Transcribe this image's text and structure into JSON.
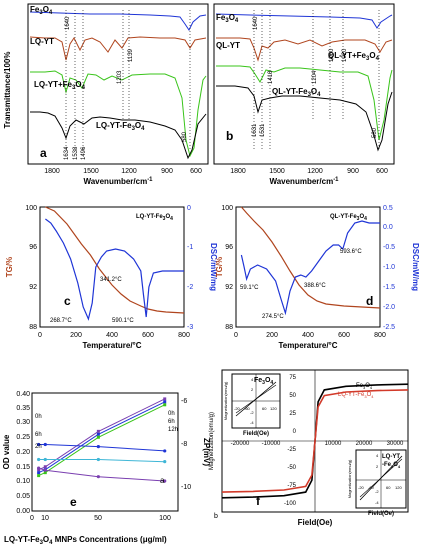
{
  "colors": {
    "black": "#000000",
    "blue": "#1f35d6",
    "green": "#39c41a",
    "brown": "#b0451e",
    "red": "#d23a2a",
    "purple": "#7a3fb0",
    "cyan": "#3fb6d6",
    "gray": "#555555"
  },
  "chart_data": [
    {
      "panel": "a",
      "type": "line",
      "xlabel": "Wavenumber/cm",
      "xlabel_sup": "-1",
      "ylabel": "Transmittance/100%",
      "xticks": [
        "1800",
        "1500",
        "1200",
        "900",
        "600"
      ],
      "xlim": [
        1900,
        480
      ],
      "series": [
        {
          "name": "Fe3O4"
        },
        {
          "name": "LQ-YT"
        },
        {
          "name": "LQ-YT+Fe3O4"
        },
        {
          "name": "LQ-YT-Fe3O4"
        }
      ],
      "annotations": [
        "1640",
        "1203",
        "1139",
        "1634",
        "1538",
        "1496",
        "580"
      ]
    },
    {
      "panel": "b",
      "type": "line",
      "xlabel": "Wavenumber/cm",
      "xlabel_sup": "-1",
      "xticks": [
        "1800",
        "1500",
        "1200",
        "900",
        "600"
      ],
      "xlim": [
        1900,
        480
      ],
      "series": [
        {
          "name": "Fe3O4"
        },
        {
          "name": "QL-YT"
        },
        {
          "name": "QL-YT+Fe3O4"
        },
        {
          "name": "QL-YT-Fe3O4"
        }
      ],
      "annotations": [
        "1640",
        "1418",
        "1204",
        "1060",
        "1020",
        "1631",
        "1531",
        "580"
      ]
    },
    {
      "panel": "c",
      "type": "line",
      "title": "LQ-YT-Fe3O4",
      "xlabel": "Temperature/°C",
      "ylabel_left": "TG/%",
      "ylabel_right": "DSC/mW/mg",
      "xlim": [
        0,
        800
      ],
      "ylim_left": [
        88,
        100
      ],
      "ylim_right": [
        -3,
        0
      ],
      "xticks": [
        "0",
        "200",
        "400",
        "600",
        "800"
      ],
      "yticks_left": [
        "88",
        "92",
        "96",
        "100"
      ],
      "yticks_right": [
        "-3",
        "-2",
        "-1",
        "0"
      ],
      "tg": {
        "x": [
          30,
          80,
          150,
          230,
          280,
          330,
          400,
          450,
          500,
          560,
          600,
          650,
          700,
          800
        ],
        "y": [
          100,
          99.6,
          98.3,
          96.3,
          95.2,
          93.8,
          92.2,
          91.3,
          90.6,
          90.1,
          89.8,
          89.6,
          89.5,
          89.4
        ]
      },
      "dsc": {
        "x": [
          30,
          60,
          90,
          130,
          170,
          210,
          240,
          268.7,
          290,
          310,
          341.2,
          370,
          420,
          470,
          520,
          560,
          575,
          590.1,
          605,
          630,
          680,
          750,
          800
        ],
        "y": [
          -0.3,
          -0.4,
          -0.6,
          -0.9,
          -1.3,
          -1.9,
          -2.5,
          -2.8,
          -2.4,
          -1.5,
          -1.25,
          -1.1,
          -1.05,
          -1.1,
          -1.3,
          -1.6,
          -2.2,
          -2.75,
          -2.0,
          -1.65,
          -1.6,
          -1.6,
          -1.6
        ]
      },
      "annotations": [
        "268.7°C",
        "341.2°C",
        "590.1°C"
      ]
    },
    {
      "panel": "d",
      "type": "line",
      "title": "QL-YT-Fe3O4",
      "xlabel": "Temperature/°C",
      "ylabel_left": "TG/%",
      "ylabel_right": "DSC/mW/mg",
      "xlim": [
        0,
        800
      ],
      "ylim_left": [
        88,
        100
      ],
      "ylim_right": [
        -2.5,
        0.5
      ],
      "xticks": [
        "0",
        "200",
        "400",
        "600",
        "800"
      ],
      "yticks_left": [
        "88",
        "92",
        "96",
        "100"
      ],
      "yticks_right": [
        "-2.5",
        "-2.0",
        "-1.5",
        "-1.0",
        "-0.5",
        "0.0",
        "0.5"
      ],
      "tg": {
        "x": [
          30,
          59.1,
          100,
          150,
          200,
          250,
          300,
          350,
          400,
          450,
          500,
          600,
          700,
          800
        ],
        "y": [
          100,
          99.4,
          98.6,
          97.7,
          96.5,
          95.1,
          93.6,
          92.2,
          91.2,
          90.6,
          90.3,
          90.1,
          90.0,
          89.9
        ]
      },
      "dsc": {
        "x": [
          30,
          45,
          59.1,
          80,
          120,
          170,
          220,
          250,
          274.5,
          300,
          330,
          360,
          388.6,
          420,
          460,
          500,
          540,
          570,
          593.6,
          620,
          660,
          700,
          740,
          800
        ],
        "y": [
          -0.7,
          -1.0,
          -1.3,
          -1.05,
          -0.95,
          -1.05,
          -1.35,
          -1.8,
          -2.15,
          -1.6,
          -1.25,
          -1.2,
          -1.25,
          -1.1,
          -0.85,
          -0.6,
          -0.45,
          -0.45,
          -0.55,
          -0.15,
          0.1,
          0.15,
          0.1,
          0.1
        ]
      },
      "annotations": [
        "59.1°C",
        "274.5°C",
        "388.6°C",
        "593.6°C"
      ]
    },
    {
      "panel": "e",
      "type": "line",
      "xlabel": "LQ-YT-Fe3O4 MNPs Concentrations (μg/ml)",
      "ylabel_left": "OD value",
      "ylabel_right": "ZP(mV)",
      "xlim": [
        0,
        110
      ],
      "ylim_left": [
        0.0,
        0.4
      ],
      "ylim_right": [
        -11,
        -5.5
      ],
      "xticks": [
        "0",
        "10",
        "50",
        "100"
      ],
      "yticks_left": [
        "0.00",
        "0.05",
        "0.10",
        "0.15",
        "0.20",
        "0.25",
        "0.30",
        "0.35",
        "0.40"
      ],
      "yticks_right": [
        "-10",
        "-8",
        "-6"
      ],
      "x": [
        5,
        10,
        50,
        100
      ],
      "od_series": [
        {
          "name": "0h",
          "color": "#7a3fb0",
          "values": [
            0.14,
            0.15,
            0.27,
            0.38
          ]
        },
        {
          "name": "6h",
          "color": "#1f35d6",
          "values": [
            0.13,
            0.14,
            0.26,
            0.37
          ]
        },
        {
          "name": "12h",
          "color": "#39c41a",
          "values": [
            0.12,
            0.13,
            0.25,
            0.36
          ]
        }
      ],
      "zp_series": [
        {
          "name": "0h",
          "color": "#1f35d6",
          "values": [
            -7.9,
            -7.9,
            -8.0,
            -8.2
          ]
        },
        {
          "name": "6h",
          "color": "#3fb6d6",
          "values": [
            -8.6,
            -8.6,
            -8.6,
            -8.7
          ]
        },
        {
          "name": "2h",
          "color": "#7a3fb0",
          "values": [
            -9.0,
            -9.1,
            -9.4,
            -9.6
          ]
        }
      ],
      "labels": [
        "0h",
        "6h",
        "2h",
        "0h",
        "6h",
        "12h",
        "a"
      ]
    },
    {
      "panel": "f",
      "type": "line",
      "xlabel": "Field(Oe)",
      "ylabel": "Magnetization(emu/g)",
      "xlim": [
        -30000,
        30000
      ],
      "ylim": [
        -100,
        100
      ],
      "xticks": [
        "-30000",
        "-20000",
        "-10000",
        "0",
        "10000",
        "20000",
        "30000"
      ],
      "yticks": [
        "-100",
        "-75",
        "-50",
        "-25",
        "0",
        "25",
        "50",
        "75"
      ],
      "series": [
        {
          "name": "Fe3O4",
          "color": "#000000",
          "x": [
            -30000,
            -20000,
            -10000,
            -3000,
            -1000,
            0,
            1000,
            3000,
            10000,
            20000,
            30000
          ],
          "y": [
            -80,
            -79,
            -77,
            -72,
            -55,
            0,
            55,
            72,
            77,
            79,
            80
          ]
        },
        {
          "name": "LQ-YT-Fe3O4",
          "color": "#d23a2a",
          "x": [
            -30000,
            -20000,
            -10000,
            -3000,
            -1000,
            0,
            1000,
            3000,
            10000,
            20000,
            30000
          ],
          "y": [
            -72,
            -71,
            -69,
            -64,
            -48,
            0,
            48,
            64,
            69,
            71,
            72
          ]
        }
      ],
      "inset1": {
        "title": "Fe3O4",
        "xlabel": "Field(Oe)",
        "ylabel": "Magnetization(emu/g)",
        "xticks": [
          "-20",
          "-60",
          "60",
          "120"
        ],
        "yticks": [
          "4",
          "2",
          "-2",
          "-4"
        ]
      },
      "inset2": {
        "title": "LQ-YT -Fe3O4",
        "xlabel": "Field(Oe)",
        "ylabel": "Magnetization(emu/g)",
        "xticks": [
          "-20",
          "-60",
          "60",
          "120"
        ],
        "yticks": [
          "4",
          "2",
          "-2",
          "-4"
        ]
      },
      "corner": "b"
    }
  ]
}
